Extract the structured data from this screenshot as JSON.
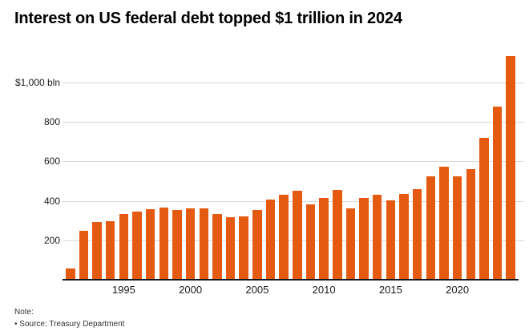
{
  "page": {
    "title": "Interest on US federal debt topped $1 trillion in 2024",
    "note_label": "Note:",
    "source_label": "• Source: Treasury Department"
  },
  "colors": {
    "background": "#FFFFFF",
    "bar": "#E55A11",
    "axis_line": "#10181F",
    "gridline": "#D9D9D9",
    "title_text": "#000000",
    "tick_text": "#1A1A1A",
    "note_text": "#333333"
  },
  "chart_data": {
    "type": "bar",
    "title": "Interest on US federal debt topped $1 trillion in 2024",
    "unit": "$ bln",
    "source": "Treasury Department",
    "grid": "horizontal",
    "legend": "none",
    "ylim": [
      0,
      1150
    ],
    "x": [
      1991,
      1992,
      1993,
      1994,
      1995,
      1996,
      1997,
      1998,
      1999,
      2000,
      2001,
      2002,
      2003,
      2004,
      2005,
      2006,
      2007,
      2008,
      2009,
      2010,
      2011,
      2012,
      2013,
      2014,
      2015,
      2016,
      2017,
      2018,
      2019,
      2020,
      2021,
      2022,
      2023,
      2024
    ],
    "values": [
      57,
      249,
      293,
      296,
      332,
      344,
      356,
      364,
      354,
      362,
      360,
      333,
      318,
      322,
      352,
      406,
      430,
      451,
      383,
      414,
      454,
      360,
      416,
      431,
      402,
      433,
      459,
      523,
      575,
      523,
      562,
      718,
      879,
      1133
    ],
    "y_ticks": [
      {
        "value": 200,
        "label": "200"
      },
      {
        "value": 400,
        "label": "400"
      },
      {
        "value": 600,
        "label": "600"
      },
      {
        "value": 800,
        "label": "800"
      },
      {
        "value": 1000,
        "label": "$1,000 bln"
      }
    ],
    "x_ticks": [
      1995,
      2000,
      2005,
      2010,
      2015,
      2020
    ]
  }
}
